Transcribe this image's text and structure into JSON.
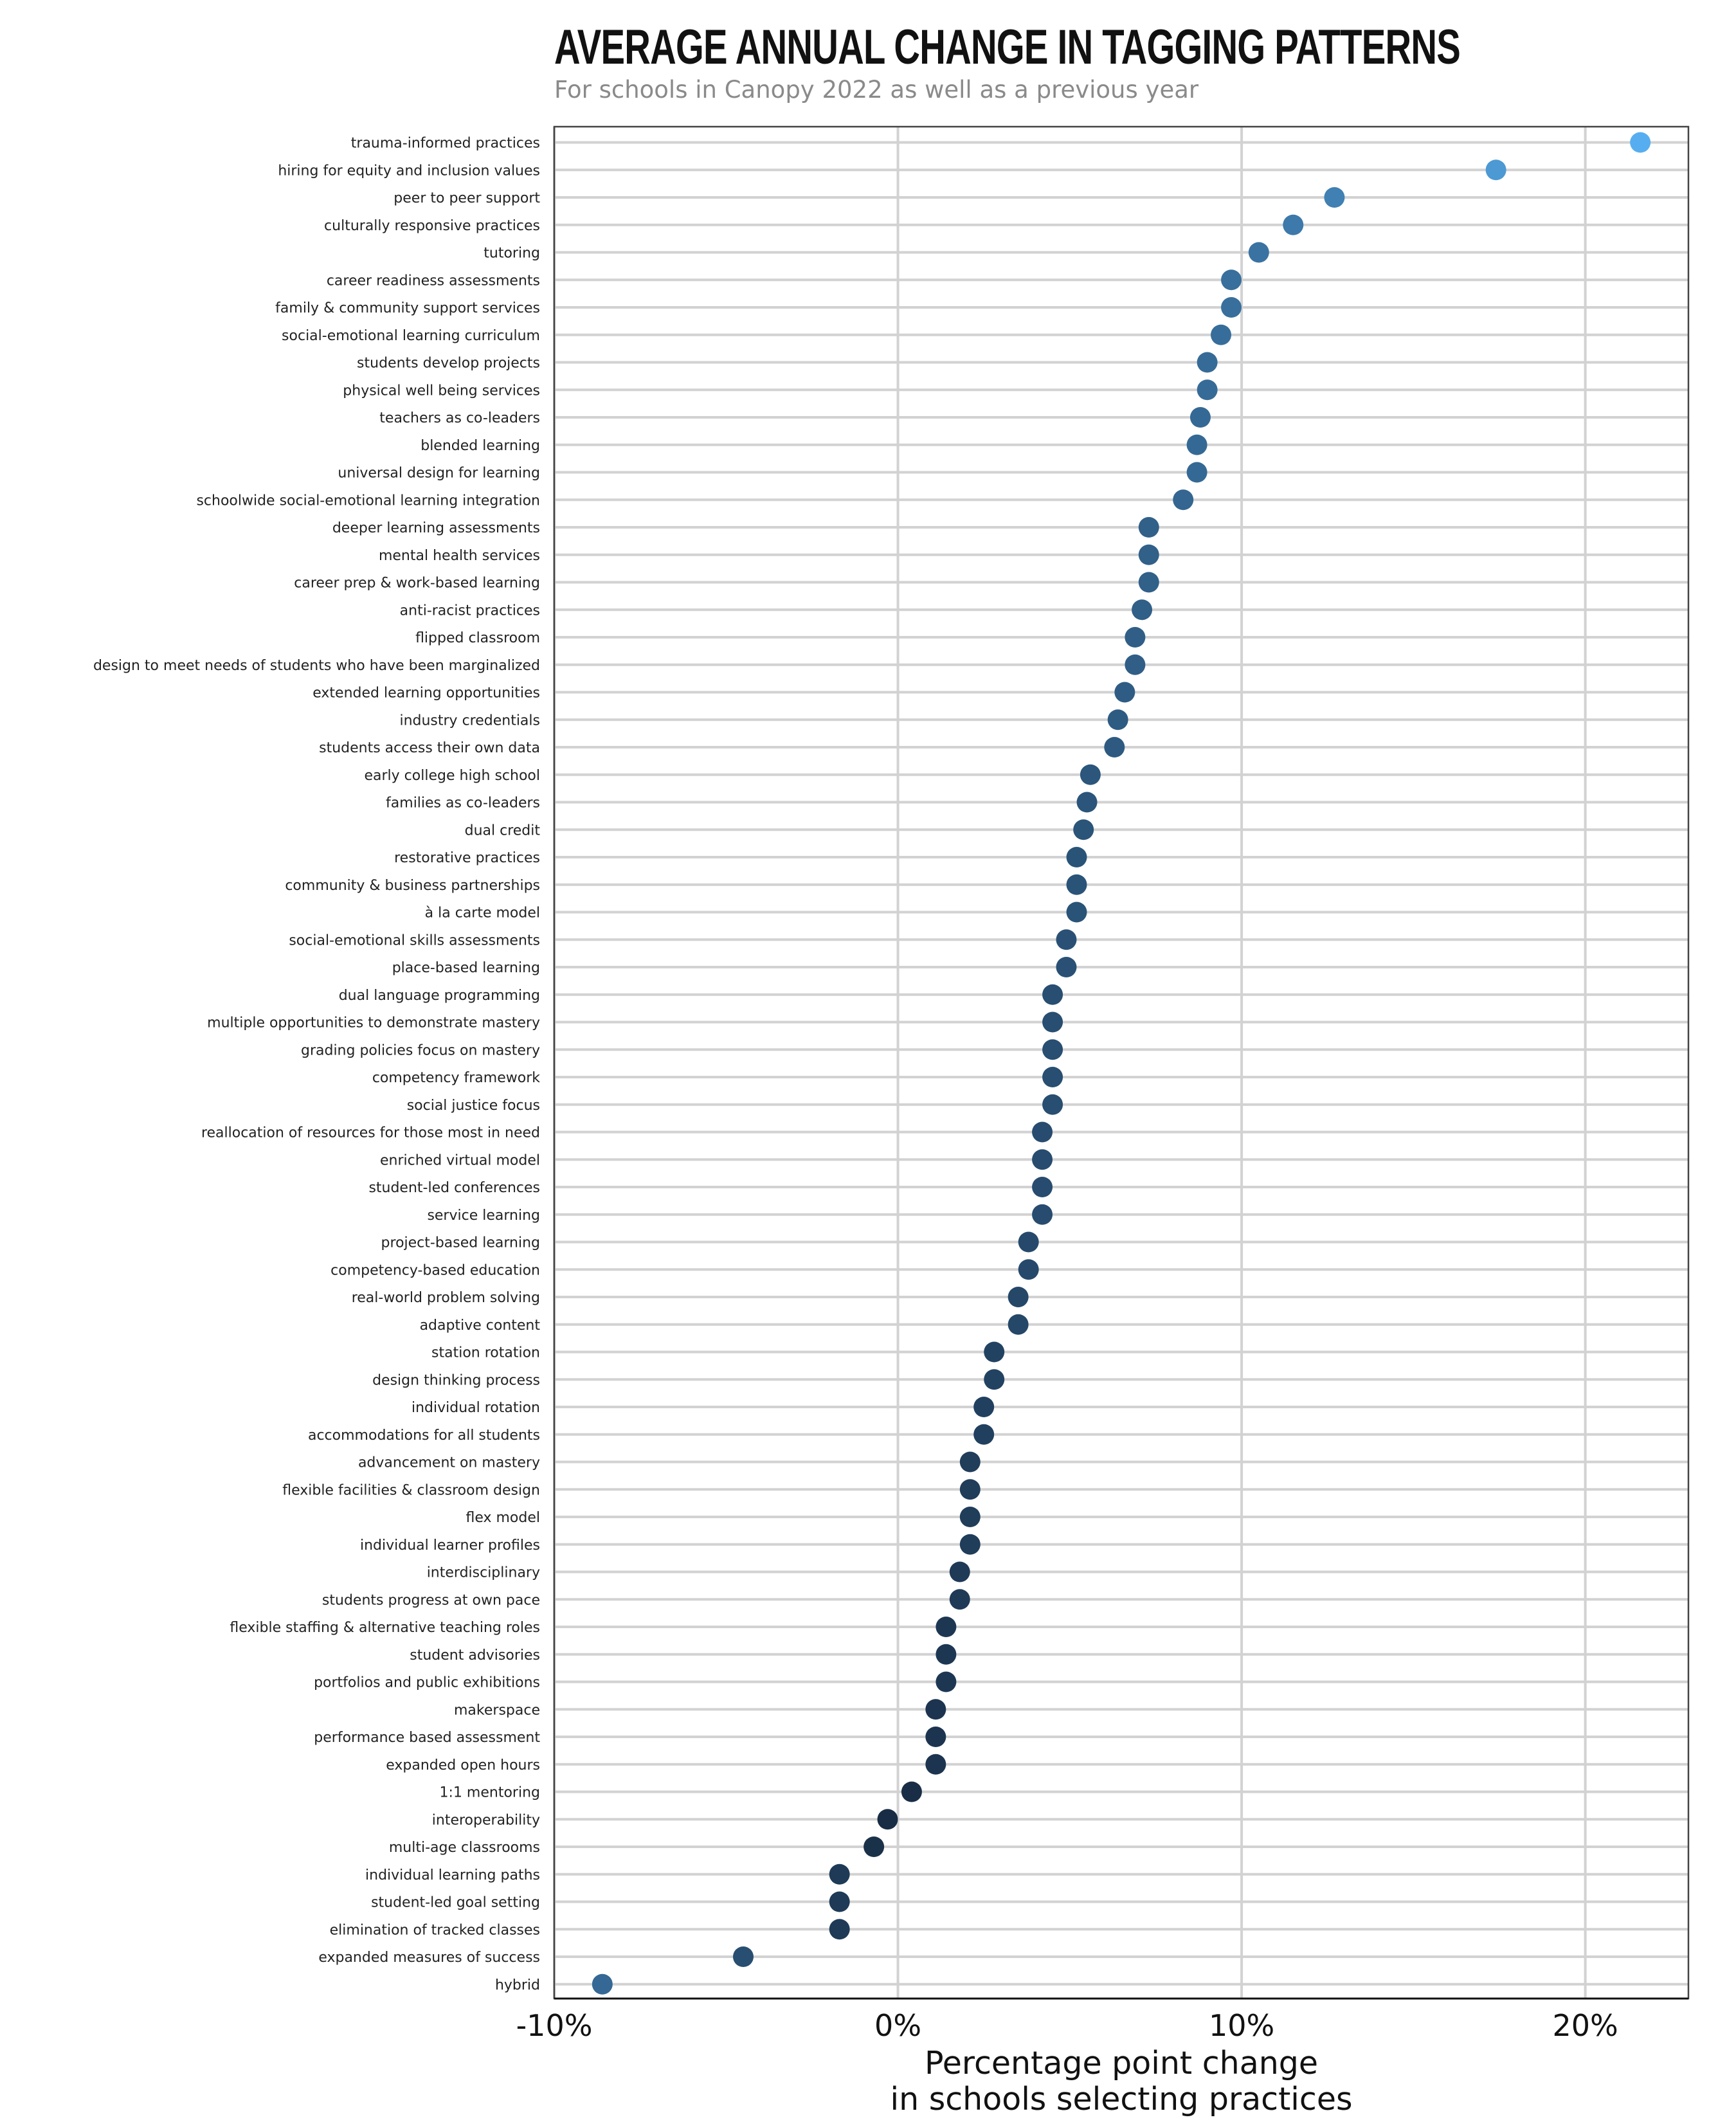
{
  "title": "Average annual change in tagging patterns",
  "subtitle": "For schools in Canopy 2022 as well as a previous year",
  "chart_data": {
    "type": "scatter",
    "orientation": "horizontal dot plot",
    "title": "Average annual change in tagging patterns",
    "subtitle": "For schools in Canopy 2022 as well as a previous year",
    "xlabel": [
      "Percentage point change",
      "in schools selecting practices"
    ],
    "ylabel": "",
    "xlim": [
      -10,
      23
    ],
    "xticks": [
      -10,
      0,
      10,
      20
    ],
    "xtick_labels": [
      "-10%",
      "0%",
      "10%",
      "20%"
    ],
    "grid": true,
    "legend": "none",
    "color_scale": {
      "low": "#16283f",
      "high": "#56aef0"
    },
    "categories": [
      "trauma-informed practices",
      "hiring for equity and inclusion values",
      "peer to peer support",
      "culturally responsive practices",
      "tutoring",
      "career readiness assessments",
      "family & community support services",
      "social-emotional learning curriculum",
      "students develop projects",
      "physical well being services",
      "teachers as co-leaders",
      "blended learning",
      "universal design for learning",
      "schoolwide social-emotional learning integration",
      "deeper learning assessments",
      "mental health services",
      "career prep & work-based learning",
      "anti-racist practices",
      "flipped classroom",
      "design to meet needs of students who have been marginalized",
      "extended learning opportunities",
      "industry credentials",
      "students access their own data",
      "early college high school",
      "families as co-leaders",
      "dual credit",
      "restorative practices",
      "community & business partnerships",
      "à la carte model",
      "social-emotional skills assessments",
      "place-based learning",
      "dual language programming",
      "multiple opportunities to demonstrate mastery",
      "grading policies focus on mastery",
      "competency framework",
      "social justice focus",
      "reallocation of resources for those most in need",
      "enriched virtual model",
      "student-led conferences",
      "service learning",
      "project-based learning",
      "competency-based education",
      "real-world problem solving",
      "adaptive content",
      "station rotation",
      "design thinking process",
      "individual rotation",
      "accommodations for all students",
      "advancement on mastery",
      "flexible facilities & classroom design",
      "flex model",
      "individual learner profiles",
      "interdisciplinary",
      "students progress at own pace",
      "flexible staffing & alternative teaching roles",
      "student advisories",
      "portfolios and public exhibitions",
      "makerspace",
      "performance based assessment",
      "expanded open hours",
      "1:1 mentoring",
      "interoperability",
      "multi-age classrooms",
      "individual learning paths",
      "student-led goal setting",
      "elimination of tracked classes",
      "expanded measures of success",
      "hybrid"
    ],
    "values": [
      21.6,
      17.4,
      12.7,
      11.5,
      10.5,
      9.7,
      9.7,
      9.4,
      9.0,
      9.0,
      8.8,
      8.7,
      8.7,
      8.3,
      7.3,
      7.3,
      7.3,
      7.1,
      6.9,
      6.9,
      6.6,
      6.4,
      6.3,
      5.6,
      5.5,
      5.4,
      5.2,
      5.2,
      5.2,
      4.9,
      4.9,
      4.5,
      4.5,
      4.5,
      4.5,
      4.5,
      4.2,
      4.2,
      4.2,
      4.2,
      3.8,
      3.8,
      3.5,
      3.5,
      2.8,
      2.8,
      2.5,
      2.5,
      2.1,
      2.1,
      2.1,
      2.1,
      1.8,
      1.8,
      1.4,
      1.4,
      1.4,
      1.1,
      1.1,
      1.1,
      0.4,
      -0.3,
      -0.7,
      -1.7,
      -1.7,
      -1.7,
      -4.5,
      -8.6
    ]
  }
}
